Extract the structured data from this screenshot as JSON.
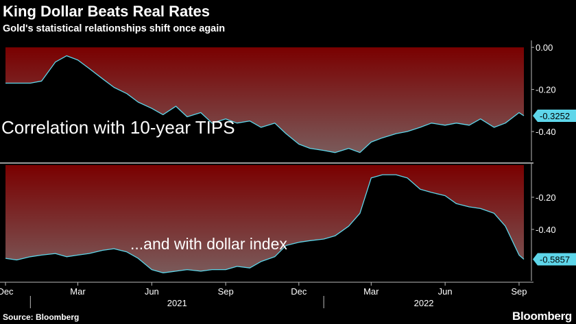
{
  "header": {
    "title": "King Dollar Beats Real Rates",
    "subtitle": "Gold's statistical relationships shift once again"
  },
  "footer": {
    "source": "Source: Bloomberg",
    "brand": "Bloomberg"
  },
  "colors": {
    "background": "#000000",
    "area_top": "#7a0000",
    "area_bottom": "#7a5a5a",
    "line": "#5ed6ea",
    "last_value_box": "#5ed6ea"
  },
  "chart_data": [
    {
      "type": "area",
      "annotation": "Correlation with 10-year TIPS",
      "ylim": [
        -0.54,
        0.02
      ],
      "yticks": [
        0.0,
        -0.2,
        -0.4
      ],
      "ytick_labels": [
        "0.00",
        "-0.20",
        "-0.40"
      ],
      "last_value_label": "-0.3252",
      "x": [
        "2020-12-01",
        "2020-12-15",
        "2021-01-01",
        "2021-01-15",
        "2021-02-01",
        "2021-02-15",
        "2021-03-01",
        "2021-03-15",
        "2021-04-01",
        "2021-04-15",
        "2021-05-01",
        "2021-05-15",
        "2021-06-01",
        "2021-06-15",
        "2021-07-01",
        "2021-07-15",
        "2021-08-01",
        "2021-08-15",
        "2021-09-01",
        "2021-09-15",
        "2021-10-01",
        "2021-10-15",
        "2021-11-01",
        "2021-11-15",
        "2021-12-01",
        "2021-12-15",
        "2022-01-01",
        "2022-01-15",
        "2022-02-01",
        "2022-02-15",
        "2022-03-01",
        "2022-03-15",
        "2022-04-01",
        "2022-04-15",
        "2022-05-01",
        "2022-05-15",
        "2022-06-01",
        "2022-06-15",
        "2022-07-01",
        "2022-07-15",
        "2022-08-01",
        "2022-08-15",
        "2022-09-01",
        "2022-09-07"
      ],
      "y": [
        -0.17,
        -0.17,
        -0.17,
        -0.16,
        -0.07,
        -0.04,
        -0.06,
        -0.1,
        -0.15,
        -0.19,
        -0.22,
        -0.26,
        -0.29,
        -0.32,
        -0.28,
        -0.33,
        -0.31,
        -0.36,
        -0.34,
        -0.36,
        -0.35,
        -0.38,
        -0.36,
        -0.41,
        -0.46,
        -0.48,
        -0.49,
        -0.5,
        -0.48,
        -0.5,
        -0.45,
        -0.43,
        -0.41,
        -0.4,
        -0.38,
        -0.36,
        -0.37,
        -0.36,
        -0.37,
        -0.34,
        -0.38,
        -0.36,
        -0.31,
        -0.3252
      ]
    },
    {
      "type": "area",
      "annotation": "...and with dollar index",
      "ylim": [
        -0.72,
        0.0
      ],
      "yticks": [
        -0.2,
        -0.4
      ],
      "ytick_labels": [
        "-0.20",
        "-0.40"
      ],
      "last_value_label": "-0.5857",
      "x": [
        "2020-12-01",
        "2020-12-15",
        "2021-01-01",
        "2021-01-15",
        "2021-02-01",
        "2021-02-15",
        "2021-03-01",
        "2021-03-15",
        "2021-04-01",
        "2021-04-15",
        "2021-05-01",
        "2021-05-15",
        "2021-06-01",
        "2021-06-15",
        "2021-07-01",
        "2021-07-15",
        "2021-08-01",
        "2021-08-15",
        "2021-09-01",
        "2021-09-15",
        "2021-10-01",
        "2021-10-15",
        "2021-11-01",
        "2021-11-15",
        "2021-12-01",
        "2021-12-15",
        "2022-01-01",
        "2022-01-15",
        "2022-02-01",
        "2022-02-15",
        "2022-03-01",
        "2022-03-15",
        "2022-04-01",
        "2022-04-15",
        "2022-05-01",
        "2022-05-15",
        "2022-06-01",
        "2022-06-15",
        "2022-07-01",
        "2022-07-15",
        "2022-08-01",
        "2022-08-15",
        "2022-09-01",
        "2022-09-07"
      ],
      "y": [
        -0.58,
        -0.59,
        -0.57,
        -0.56,
        -0.55,
        -0.57,
        -0.56,
        -0.55,
        -0.53,
        -0.52,
        -0.54,
        -0.58,
        -0.65,
        -0.67,
        -0.66,
        -0.65,
        -0.66,
        -0.65,
        -0.65,
        -0.63,
        -0.64,
        -0.6,
        -0.57,
        -0.5,
        -0.48,
        -0.47,
        -0.46,
        -0.44,
        -0.38,
        -0.3,
        -0.08,
        -0.06,
        -0.06,
        -0.08,
        -0.15,
        -0.17,
        -0.19,
        -0.24,
        -0.26,
        -0.27,
        -0.3,
        -0.38,
        -0.56,
        -0.5857
      ]
    }
  ],
  "x_axis": {
    "tick_dates": [
      "2020-12-01",
      "2021-03-01",
      "2021-06-01",
      "2021-09-01",
      "2021-12-01",
      "2022-03-01",
      "2022-06-01",
      "2022-09-01"
    ],
    "tick_labels": [
      "Dec",
      "Mar",
      "Jun",
      "Sep",
      "Dec",
      "Mar",
      "Jun",
      "Sep"
    ],
    "years": [
      "2021",
      "2022"
    ]
  }
}
